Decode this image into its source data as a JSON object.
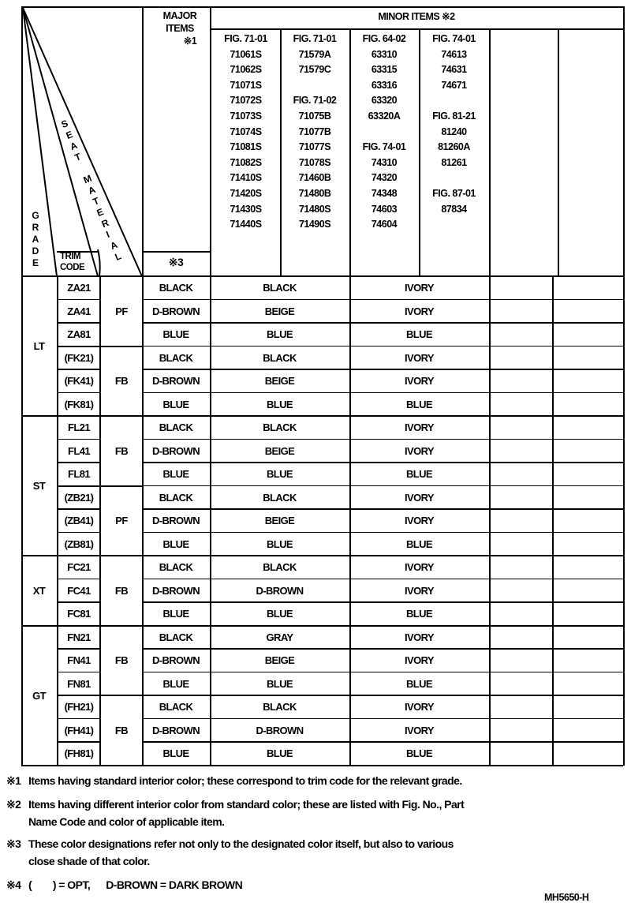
{
  "header": {
    "major_items": "MAJOR ITEMS",
    "major_mark": "※1",
    "major_note_mark": "※3",
    "minor_items": "MINOR ITEMS ※2",
    "grade": "GRADE",
    "trim_code": "TRIM CODE",
    "seat_material": "SEAT MATERIAL"
  },
  "part_columns": [
    [
      "FIG. 71-01",
      "71061S",
      "71062S",
      "71071S",
      "71072S",
      "71073S",
      "71074S",
      "71081S",
      "71082S",
      "71410S",
      "71420S",
      "71430S",
      "71440S"
    ],
    [
      "FIG. 71-01",
      "71579A",
      "71579C",
      "",
      "FIG. 71-02",
      "71075B",
      "71077B",
      "71077S",
      "71078S",
      "71460B",
      "71480B",
      "71480S",
      "71490S"
    ],
    [
      "FIG. 64-02",
      "63310",
      "63315",
      "63316",
      "63320",
      "63320A",
      "",
      "FIG. 74-01",
      "74310",
      "74320",
      "74348",
      "74603",
      "74604"
    ],
    [
      "FIG. 74-01",
      "74613",
      "74631",
      "74671",
      "",
      "FIG. 81-21",
      "81240",
      "81260A",
      "81261",
      "",
      "FIG. 87-01",
      "87834"
    ],
    [],
    []
  ],
  "grades": [
    {
      "name": "LT",
      "rows": 6
    },
    {
      "name": "ST",
      "rows": 6
    },
    {
      "name": "XT",
      "rows": 3
    },
    {
      "name": "GT",
      "rows": 6
    }
  ],
  "materials": [
    {
      "name": "PF",
      "rows": 3
    },
    {
      "name": "FB",
      "rows": 3
    },
    {
      "name": "FB",
      "rows": 3
    },
    {
      "name": "PF",
      "rows": 3
    },
    {
      "name": "FB",
      "rows": 3
    },
    {
      "name": "FB",
      "rows": 3
    },
    {
      "name": "FB",
      "rows": 3
    }
  ],
  "rows": [
    {
      "trim": "ZA21",
      "major": "BLACK",
      "minor_a": "BLACK",
      "minor_b": "IVORY"
    },
    {
      "trim": "ZA41",
      "major": "D-BROWN",
      "minor_a": "BEIGE",
      "minor_b": "IVORY"
    },
    {
      "trim": "ZA81",
      "major": "BLUE",
      "minor_a": "BLUE",
      "minor_b": "BLUE"
    },
    {
      "trim": "(FK21)",
      "major": "BLACK",
      "minor_a": "BLACK",
      "minor_b": "IVORY"
    },
    {
      "trim": "(FK41)",
      "major": "D-BROWN",
      "minor_a": "BEIGE",
      "minor_b": "IVORY"
    },
    {
      "trim": "(FK81)",
      "major": "BLUE",
      "minor_a": "BLUE",
      "minor_b": "BLUE"
    },
    {
      "trim": "FL21",
      "major": "BLACK",
      "minor_a": "BLACK",
      "minor_b": "IVORY"
    },
    {
      "trim": "FL41",
      "major": "D-BROWN",
      "minor_a": "BEIGE",
      "minor_b": "IVORY"
    },
    {
      "trim": "FL81",
      "major": "BLUE",
      "minor_a": "BLUE",
      "minor_b": "BLUE"
    },
    {
      "trim": "(ZB21)",
      "major": "BLACK",
      "minor_a": "BLACK",
      "minor_b": "IVORY"
    },
    {
      "trim": "(ZB41)",
      "major": "D-BROWN",
      "minor_a": "BEIGE",
      "minor_b": "IVORY"
    },
    {
      "trim": "(ZB81)",
      "major": "BLUE",
      "minor_a": "BLUE",
      "minor_b": "BLUE"
    },
    {
      "trim": "FC21",
      "major": "BLACK",
      "minor_a": "BLACK",
      "minor_b": "IVORY"
    },
    {
      "trim": "FC41",
      "major": "D-BROWN",
      "minor_a": "D-BROWN",
      "minor_b": "IVORY"
    },
    {
      "trim": "FC81",
      "major": "BLUE",
      "minor_a": "BLUE",
      "minor_b": "BLUE"
    },
    {
      "trim": "FN21",
      "major": "BLACK",
      "minor_a": "GRAY",
      "minor_b": "IVORY"
    },
    {
      "trim": "FN41",
      "major": "D-BROWN",
      "minor_a": "BEIGE",
      "minor_b": "IVORY"
    },
    {
      "trim": "FN81",
      "major": "BLUE",
      "minor_a": "BLUE",
      "minor_b": "BLUE"
    },
    {
      "trim": "(FH21)",
      "major": "BLACK",
      "minor_a": "BLACK",
      "minor_b": "IVORY"
    },
    {
      "trim": "(FH41)",
      "major": "D-BROWN",
      "minor_a": "D-BROWN",
      "minor_b": "IVORY"
    },
    {
      "trim": "(FH81)",
      "major": "BLUE",
      "minor_a": "BLUE",
      "minor_b": "BLUE"
    }
  ],
  "notes": [
    {
      "mark": "※1",
      "text": "Items having standard interior color; these correspond to trim code for the relevant grade.",
      "cont": ""
    },
    {
      "mark": "※2",
      "text": "Items having different interior color from standard color; these are listed with Fig. No., Part",
      "cont": "Name Code and color of applicable item."
    },
    {
      "mark": "※3",
      "text": "These color designations refer not only to the designated color itself, but also to various",
      "cont": "close shade of that color."
    },
    {
      "mark": "※4",
      "text": "(        ) = OPT,      D-BROWN = DARK BROWN",
      "cont": ""
    }
  ],
  "doc_code": "MH5650-H"
}
